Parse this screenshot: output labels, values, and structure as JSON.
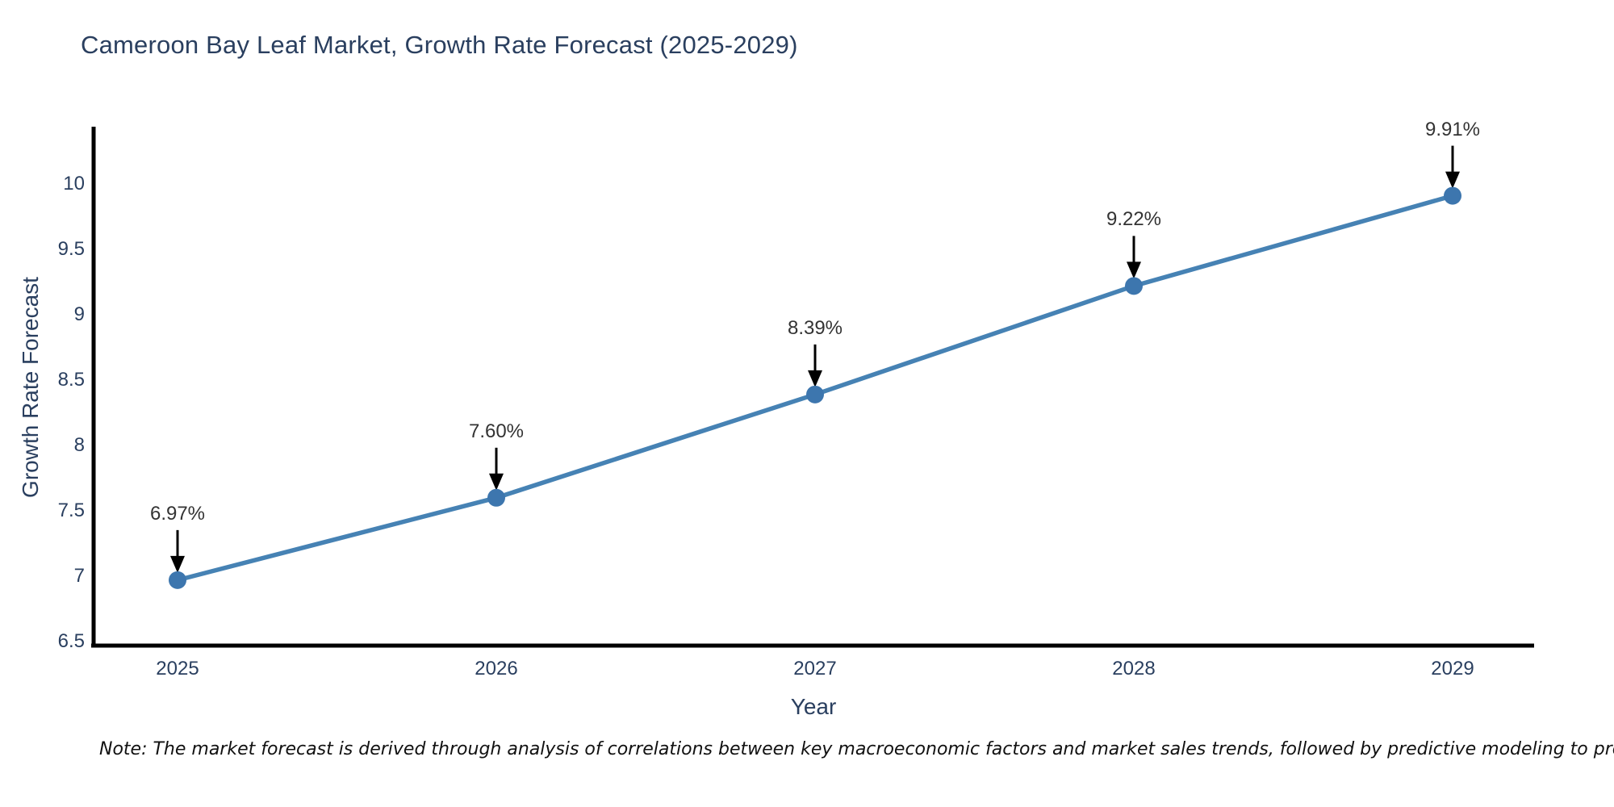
{
  "title": "Cameroon Bay Leaf Market, Growth Rate Forecast (2025-2029)",
  "note": "Note: The market forecast is derived through analysis of correlations between key macroeconomic factors and market sales trends, followed by predictive modeling to project future sales",
  "chart_data": {
    "type": "line",
    "title": "Cameroon Bay Leaf Market, Growth Rate Forecast (2025-2029)",
    "xlabel": "Year",
    "ylabel": "Growth Rate Forecast",
    "categories": [
      "2025",
      "2026",
      "2027",
      "2028",
      "2029"
    ],
    "series": [
      {
        "name": "Growth Rate Forecast",
        "values": [
          6.97,
          7.6,
          8.39,
          9.22,
          9.91
        ]
      }
    ],
    "point_labels": [
      "6.97%",
      "7.60%",
      "8.39%",
      "9.22%",
      "9.91%"
    ],
    "ylim": [
      6.5,
      10
    ],
    "yticks": [
      "6.5",
      "7",
      "7.5",
      "8",
      "8.5",
      "9",
      "9.5",
      "10"
    ],
    "grid": false,
    "legend_position": "none",
    "annotations_style": "value labels with down arrows pointing at markers",
    "colors": {
      "line": "#4682b4",
      "marker": "#3d76ae",
      "arrow": "#000000",
      "axis_line": "#000000",
      "title_text": "#2a3f5f",
      "tick_text": "#2a3f5f",
      "annotation_text": "#333333",
      "background": "#ffffff"
    }
  }
}
